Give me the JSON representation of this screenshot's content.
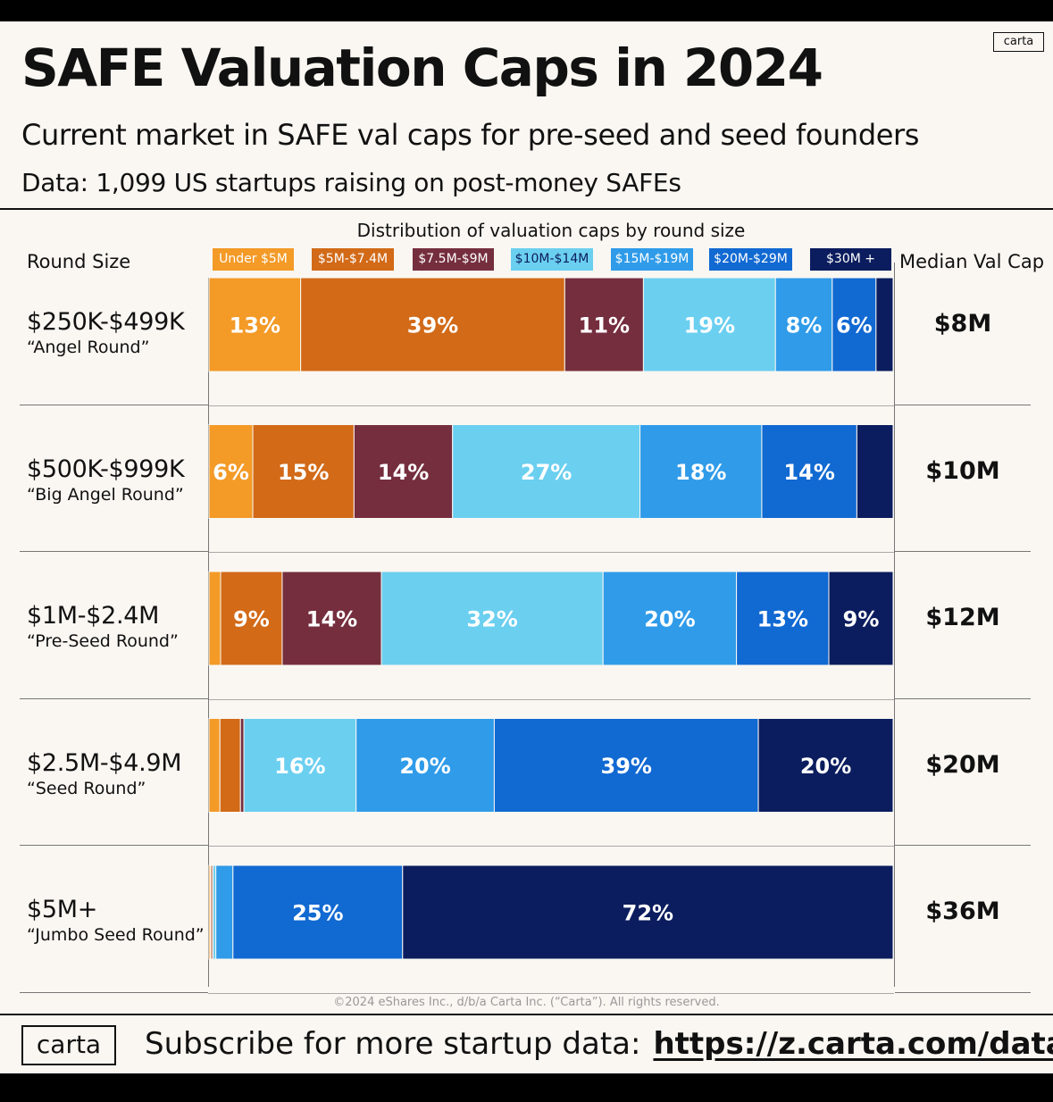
{
  "brand": "carta",
  "title": "SAFE Valuation Caps in 2024",
  "subtitle": "Current market in SAFE val caps for pre-seed and seed founders",
  "data_note": "Data: 1,099 US startups raising on post-money SAFEs",
  "headers": {
    "round_size": "Round Size",
    "distribution": "Distribution of valuation caps by round size",
    "median": "Median Val Cap"
  },
  "chart_data": {
    "type": "bar",
    "stacked": true,
    "orientation": "horizontal",
    "title": "Distribution of valuation caps by round size",
    "categories": [
      "$250K-$499K",
      "$500K-$999K",
      "$1M-$2.4M",
      "$2.5M-$4.9M",
      "$5M+"
    ],
    "category_subtitles": [
      "“Angel Round”",
      "“Big Angel Round”",
      "“Pre-Seed Round”",
      "“Seed Round”",
      "“Jumbo Seed Round”"
    ],
    "medians": [
      "$8M",
      "$10M",
      "$12M",
      "$20M",
      "$36M"
    ],
    "legend_placement": "top",
    "series": [
      {
        "name": "Under $5M",
        "color": "#f39a27",
        "values": [
          13.4,
          6.4,
          1.7,
          1.6,
          0.2
        ]
      },
      {
        "name": "$5M-$7.4M",
        "color": "#d26a18",
        "values": [
          38.6,
          14.8,
          9.0,
          3.0,
          0.2
        ]
      },
      {
        "name": "$7.5M-$9M",
        "color": "#752e3e",
        "values": [
          11.5,
          14.4,
          14.5,
          0.5,
          0.2
        ]
      },
      {
        "name": "$10M-$14M",
        "color": "#6bcff0",
        "values": [
          19.3,
          27.4,
          32.4,
          16.4,
          0.4
        ]
      },
      {
        "name": "$15M-$19M",
        "color": "#2f9be9",
        "values": [
          8.3,
          17.8,
          19.5,
          20.2,
          2.5
        ]
      },
      {
        "name": "$20M-$29M",
        "color": "#1169d2",
        "values": [
          6.4,
          13.9,
          13.5,
          38.6,
          24.8
        ]
      },
      {
        "name": "$30M +",
        "color": "#0b1d5e",
        "values": [
          2.5,
          5.3,
          9.4,
          19.7,
          71.7
        ]
      }
    ],
    "labels": [
      [
        "13%",
        "39%",
        "11%",
        "19%",
        "8%",
        "6%",
        ""
      ],
      [
        "6%",
        "15%",
        "14%",
        "27%",
        "18%",
        "14%",
        ""
      ],
      [
        "",
        "9%",
        "14%",
        "32%",
        "20%",
        "13%",
        "9%"
      ],
      [
        "",
        "",
        "",
        "16%",
        "20%",
        "39%",
        "20%"
      ],
      [
        "",
        "",
        "",
        "",
        "",
        "25%",
        "72%"
      ]
    ],
    "xlim": [
      0,
      100
    ]
  },
  "copyright": "©2024 eShares Inc., d/b/a Carta Inc. (“Carta”). All rights reserved.",
  "footer": {
    "logo": "carta",
    "text": "Subscribe for more startup data:",
    "link": "https://z.carta.com/data"
  }
}
